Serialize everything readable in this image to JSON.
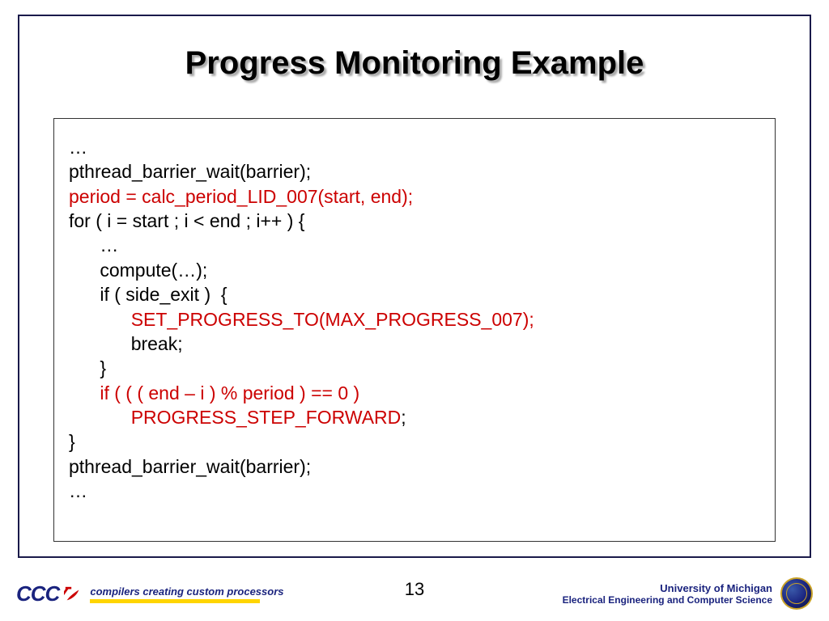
{
  "title": "Progress Monitoring Example",
  "code": {
    "lines": [
      {
        "indent": 0,
        "segments": [
          {
            "text": "…",
            "color": "black"
          }
        ]
      },
      {
        "indent": 0,
        "segments": [
          {
            "text": "pthread_barrier_wait(barrier);",
            "color": "black"
          }
        ]
      },
      {
        "indent": 0,
        "segments": [
          {
            "text": "period = calc_period_LID_007(start, end);",
            "color": "red"
          }
        ]
      },
      {
        "indent": 0,
        "segments": [
          {
            "text": "for ( i = start ; i < end ; i++ ) {",
            "color": "black"
          }
        ]
      },
      {
        "indent": 1,
        "segments": [
          {
            "text": "…",
            "color": "black"
          }
        ]
      },
      {
        "indent": 1,
        "segments": [
          {
            "text": "compute(…);",
            "color": "black"
          }
        ]
      },
      {
        "indent": 1,
        "segments": [
          {
            "text": "if ( side_exit )  {",
            "color": "black"
          }
        ]
      },
      {
        "indent": 2,
        "segments": [
          {
            "text": "SET_PROGRESS_TO(MAX_PROGRESS_007);",
            "color": "red"
          }
        ]
      },
      {
        "indent": 2,
        "segments": [
          {
            "text": "break;",
            "color": "black"
          }
        ]
      },
      {
        "indent": 1,
        "segments": [
          {
            "text": "}",
            "color": "black"
          }
        ]
      },
      {
        "indent": 1,
        "segments": [
          {
            "text": "if ( ( ( end – i ) % period ) == 0 )",
            "color": "red"
          }
        ]
      },
      {
        "indent": 2,
        "segments": [
          {
            "text": "PROGRESS_STEP_FORWARD",
            "color": "red"
          },
          {
            "text": ";",
            "color": "black"
          }
        ]
      },
      {
        "indent": 0,
        "segments": [
          {
            "text": "}",
            "color": "black"
          }
        ]
      },
      {
        "indent": 0,
        "segments": [
          {
            "text": "pthread_barrier_wait(barrier);",
            "color": "black"
          }
        ]
      },
      {
        "indent": 0,
        "segments": [
          {
            "text": "…",
            "color": "black"
          }
        ]
      }
    ],
    "indent_unit": "      ",
    "colors": {
      "black": "#000000",
      "red": "#cc0000"
    }
  },
  "footer": {
    "left_logo_text": "CCC",
    "tagline": "compilers creating custom processors",
    "page_number": "13",
    "university_line1": "University of Michigan",
    "university_line2": "Electrical Engineering and Computer Science"
  },
  "style": {
    "frame_border_color": "#1a1a4a",
    "title_shadow_color": "#aaaaaa",
    "brand_color": "#1a237e",
    "accent_yellow": "#ffd500"
  }
}
